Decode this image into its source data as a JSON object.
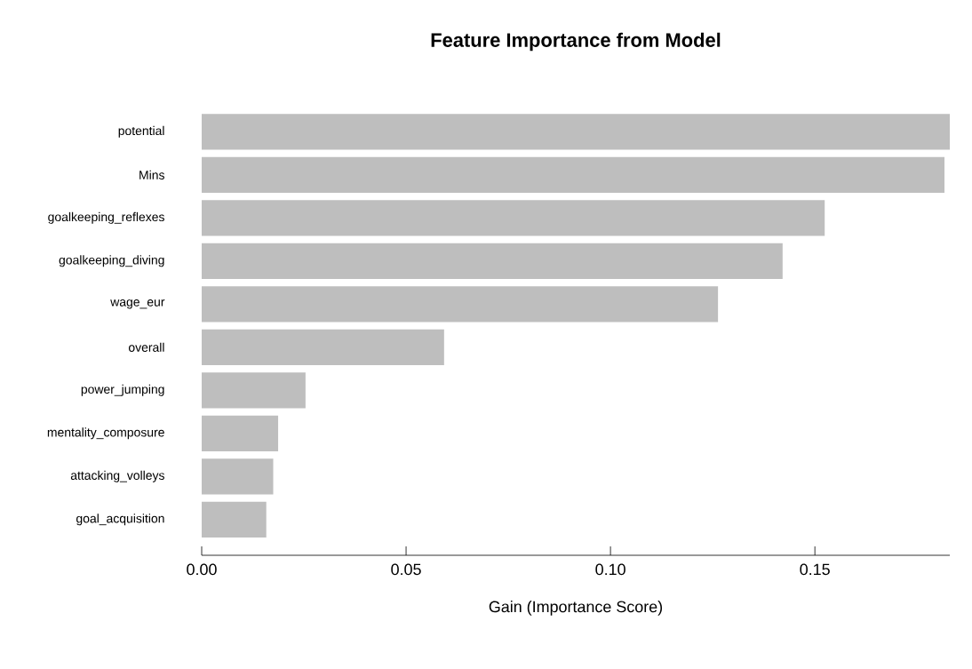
{
  "chart_data": {
    "type": "bar",
    "orientation": "horizontal",
    "title": "Feature Importance from Model",
    "xlabel": "Gain (Importance Score)",
    "categories": [
      "potential",
      "Mins",
      "goalkeeping_reflexes",
      "goalkeeping_diving",
      "wage_eur",
      "overall",
      "power_jumping",
      "mentality_composure",
      "attacking_volleys",
      "goal_acquisition"
    ],
    "values": [
      0.183,
      0.1817,
      0.1524,
      0.1421,
      0.1263,
      0.0593,
      0.0254,
      0.0187,
      0.0175,
      0.0158
    ],
    "color": "#bebebe",
    "xlim": [
      0,
      0.183
    ],
    "xticks": [
      {
        "value": 0,
        "label": "0.00"
      },
      {
        "value": 0.05,
        "label": "0.05"
      },
      {
        "value": 0.1,
        "label": "0.10"
      },
      {
        "value": 0.15,
        "label": "0.15"
      }
    ]
  }
}
